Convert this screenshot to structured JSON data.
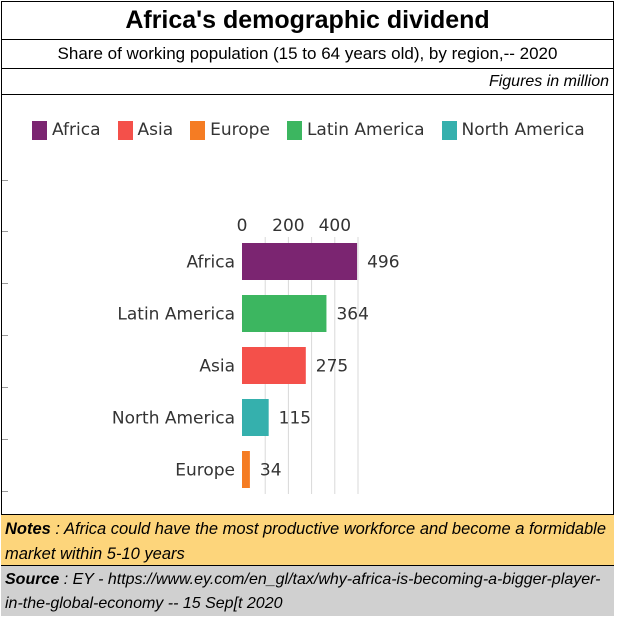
{
  "title": "Africa's demographic dividend",
  "subtitle": "Share of working population (15 to 64 years old), by region,-- 2020",
  "units_note": "Figures in million",
  "legend": [
    {
      "label": "Africa",
      "color": "#7b2571"
    },
    {
      "label": "Asia",
      "color": "#f4504a"
    },
    {
      "label": "Europe",
      "color": "#f57c23"
    },
    {
      "label": "Latin America",
      "color": "#3cb660"
    },
    {
      "label": "North America",
      "color": "#35b0ad"
    }
  ],
  "chart_data": {
    "type": "bar",
    "orientation": "horizontal",
    "categories": [
      "Africa",
      "Latin America",
      "Asia",
      "North America",
      "Europe"
    ],
    "values": [
      496,
      364,
      275,
      115,
      34
    ],
    "colors": [
      "#7b2571",
      "#3cb660",
      "#f4504a",
      "#35b0ad",
      "#f57c23"
    ],
    "x_ticks": [
      0,
      200,
      400
    ],
    "xlim": [
      0,
      500
    ],
    "grid": true
  },
  "notes": {
    "label": "Notes",
    "text": " : Africa could have the most productive workforce  and become a formidable market within 5-10  years"
  },
  "source": {
    "label": "Source",
    "text": " : EY - https://www.ey.com/en_gl/tax/why-africa-is-becoming-a-bigger-player-in-the-global-economy    -- 15 Sep[t 2020"
  }
}
